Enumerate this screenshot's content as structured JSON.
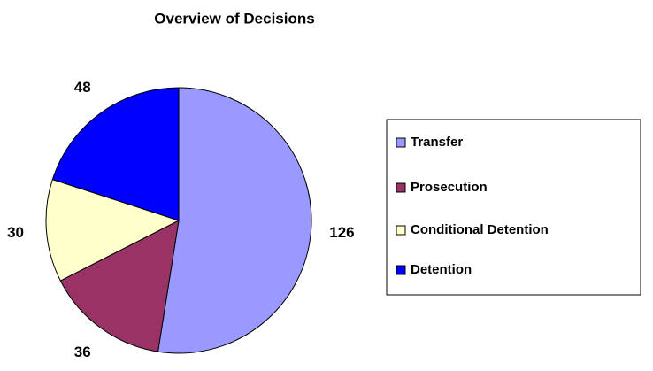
{
  "chart_data": {
    "type": "pie",
    "title": "Overview of Decisions",
    "categories": [
      "Transfer",
      "Prosecution",
      "Conditional Detention",
      "Detention"
    ],
    "values": [
      126,
      36,
      30,
      48
    ],
    "colors": [
      "#9999ff",
      "#993366",
      "#ffffcc",
      "#0000ff"
    ],
    "legend": "right"
  }
}
